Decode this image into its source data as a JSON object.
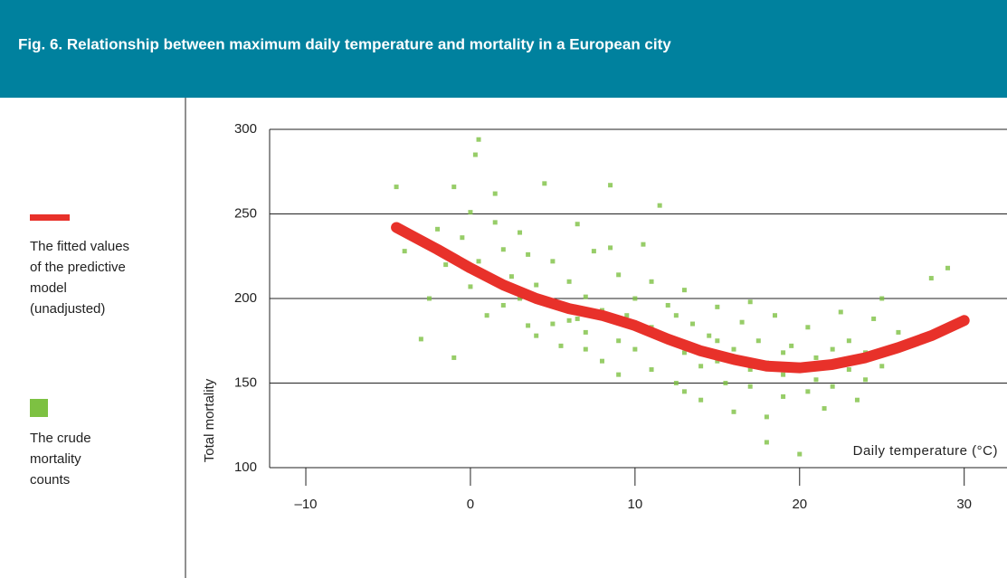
{
  "chart_data": {
    "type": "scatter",
    "title": "Fig. 6. Relationship between maximum daily temperature and mortality in a European city",
    "xlabel": "Daily temperature (°C)",
    "ylabel": "Total mortality",
    "xlim": [
      -12.2,
      32.6
    ],
    "ylim": [
      100,
      300
    ],
    "xticks": [
      {
        "value": -10,
        "label": "–10"
      },
      0,
      10,
      20,
      30
    ],
    "yticks": [
      100,
      150,
      200,
      250,
      300
    ],
    "grid": true,
    "series": [
      {
        "name": "The fitted values\nof the predictive\nmodel\n(unadjusted)",
        "type": "line",
        "color": "#e8312a",
        "x": [
          -4.5,
          -2,
          0,
          2,
          4,
          6,
          8,
          10,
          12,
          14,
          16,
          18,
          20,
          22,
          24,
          26,
          28,
          30
        ],
        "values": [
          242,
          229,
          218,
          208,
          200,
          194,
          190,
          184,
          176,
          169,
          164,
          160,
          159,
          161,
          165,
          171,
          178,
          187
        ]
      },
      {
        "name": "The crude\nmortality\ncounts",
        "type": "scatter",
        "color": "#7dc142",
        "x": [
          -4.5,
          -4,
          -3,
          -2,
          -1.5,
          -1,
          -1,
          -0.5,
          0,
          0,
          0.5,
          0.5,
          1,
          1,
          1.5,
          2,
          2,
          2.5,
          3,
          3,
          3.5,
          4,
          4,
          4.5,
          5,
          5,
          5.5,
          6,
          6,
          6.5,
          7,
          7,
          7.5,
          8,
          8,
          8.5,
          9,
          9,
          9.5,
          10,
          10,
          10.5,
          11,
          11,
          11.5,
          12,
          12,
          12.5,
          13,
          13,
          13.5,
          14,
          14,
          14.5,
          15,
          15,
          15.5,
          16,
          16,
          16.5,
          17,
          17,
          17.5,
          18,
          18,
          18.5,
          19,
          19,
          19.5,
          20,
          20,
          20.5,
          21,
          21,
          21.5,
          22,
          22,
          22.5,
          23,
          23,
          23.5,
          24,
          24,
          25,
          25,
          26,
          27,
          28,
          29,
          -2.5,
          0.3,
          1.5,
          3.5,
          6.5,
          8.5,
          9,
          12.5,
          17,
          18,
          20.5,
          24.5,
          7,
          10,
          15,
          5,
          22,
          11,
          13,
          19
        ],
        "values": [
          266,
          228,
          176,
          241,
          220,
          266,
          165,
          236,
          207,
          251,
          294,
          222,
          212,
          190,
          262,
          229,
          196,
          213,
          200,
          239,
          184,
          208,
          178,
          268,
          196,
          222,
          172,
          187,
          210,
          244,
          180,
          201,
          228,
          193,
          163,
          267,
          175,
          214,
          190,
          170,
          200,
          232,
          183,
          158,
          255,
          175,
          196,
          150,
          168,
          205,
          185,
          160,
          140,
          178,
          163,
          195,
          150,
          170,
          133,
          186,
          158,
          148,
          175,
          162,
          115,
          190,
          155,
          142,
          172,
          160,
          108,
          183,
          152,
          165,
          135,
          170,
          148,
          192,
          158,
          175,
          140,
          168,
          152,
          200,
          160,
          180,
          173,
          212,
          218,
          200,
          285,
          245,
          226,
          188,
          230,
          155,
          190,
          198,
          130,
          145,
          188,
          170,
          185,
          175,
          185,
          160,
          210,
          145,
          168
        ]
      }
    ]
  }
}
